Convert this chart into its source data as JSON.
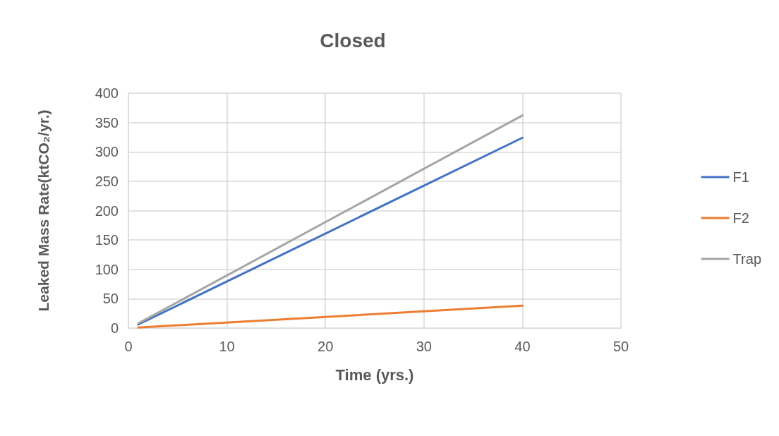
{
  "chart_data": {
    "type": "line",
    "title": "Closed",
    "xlabel": "Time (yrs.)",
    "ylabel": "Leaked Mass Rate(ktCO₂/yr.)",
    "x": [
      1,
      40
    ],
    "series": [
      {
        "name": "F1",
        "color": "#4472c4",
        "values": [
          6,
          324
        ]
      },
      {
        "name": "F2",
        "color": "#ed7d31",
        "values": [
          1,
          38
        ]
      },
      {
        "name": "Trap",
        "color": "#a5a5a5",
        "values": [
          8,
          362
        ]
      }
    ],
    "xlim": [
      0,
      50
    ],
    "xticks": [
      0,
      10,
      20,
      30,
      40,
      50
    ],
    "ylim": [
      0,
      400
    ],
    "yticks": [
      0,
      50,
      100,
      150,
      200,
      250,
      300,
      350,
      400
    ],
    "grid": true,
    "legend": "right",
    "marker": "none",
    "line_style": "solid"
  }
}
